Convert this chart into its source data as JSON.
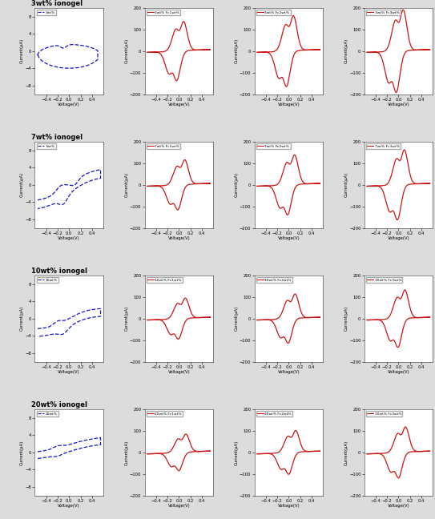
{
  "rows": [
    {
      "label": "3wt% ionogel",
      "ylim_blue": [
        -10,
        10
      ],
      "ylim_red": [
        -200,
        200
      ]
    },
    {
      "label": "7wt% ionogel",
      "ylim_blue": [
        -10,
        10
      ],
      "ylim_red": [
        -200,
        200
      ]
    },
    {
      "label": "10wt% ionogel",
      "ylim_blue": [
        -10,
        10
      ],
      "ylim_red": [
        -200,
        200
      ]
    },
    {
      "label": "20wt% ionogel",
      "ylim_blue": [
        -10,
        10
      ],
      "ylim_red": [
        -200,
        200
      ]
    }
  ],
  "blue_legend_labels": [
    "3wt%",
    "7wt%",
    "10wt%",
    "20wt%"
  ],
  "red_legend_labels": [
    [
      "3wt% Fc1wt%",
      "3wt% Fc2wt%",
      "3wt% Fc3wt%"
    ],
    [
      "7wt% Fc1wt%",
      "7wt% Fc2wt%",
      "7wt% Fc3wt%"
    ],
    [
      "10wt% Fc1wt%",
      "10wt% Fc2wt%",
      "10wt% Fc3wt%"
    ],
    [
      "20wt% Fc1wt%",
      "20wt% Fc2wt%",
      "20wt% Fc3wt%"
    ]
  ],
  "blue_color": "#1414CC",
  "red_color": "#CC1414",
  "bg_color": "#dcdcdc",
  "xlim": [
    -0.6,
    0.6
  ],
  "xlabel": "Voltage(V)",
  "ylabel_blue": "Current(μA)",
  "ylabel_red": "Current(μA)"
}
